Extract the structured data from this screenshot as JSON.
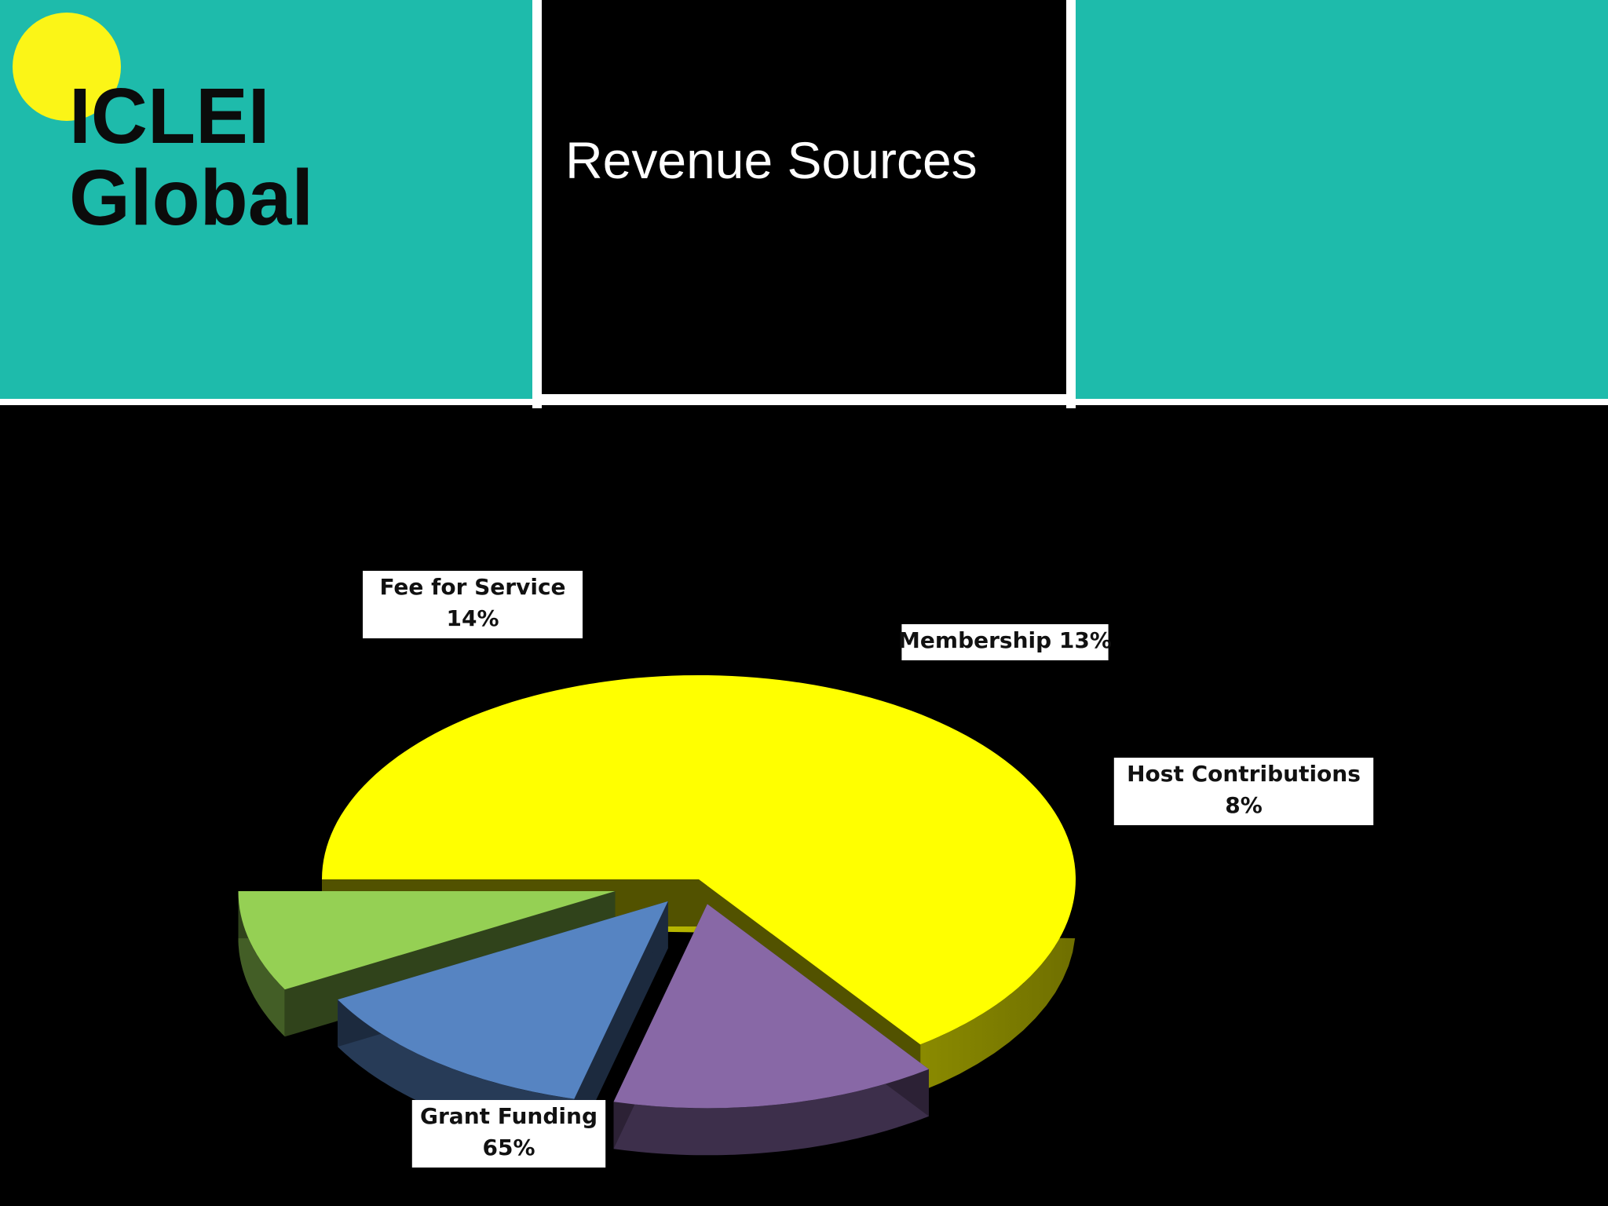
{
  "header": {
    "org_name": "ICLEI\nGlobal",
    "title": "Revenue Sources"
  },
  "colors": {
    "teal": "#1ebbab",
    "accent_yellow": "#fbf517",
    "background": "#000000"
  },
  "chart_data": {
    "type": "pie",
    "style": "3d-exploded",
    "title": "",
    "slices": [
      {
        "label": "Grant Funding",
        "value": 65,
        "value_label": "65%",
        "color": "#ffff00"
      },
      {
        "label": "Fee for Service",
        "value": 14,
        "value_label": "14%",
        "color": "#8868a6"
      },
      {
        "label": "Membership",
        "value": 13,
        "value_label": "13%",
        "color": "#5684c2"
      },
      {
        "label": "Host Contributions",
        "value": 8,
        "value_label": "8%",
        "color": "#95d054"
      }
    ],
    "labels": [
      {
        "text": "Grant Funding\n65%"
      },
      {
        "text": "Fee for Service\n14%"
      },
      {
        "text": "Membership 13%"
      },
      {
        "text": "Host Contributions\n8%"
      }
    ]
  }
}
